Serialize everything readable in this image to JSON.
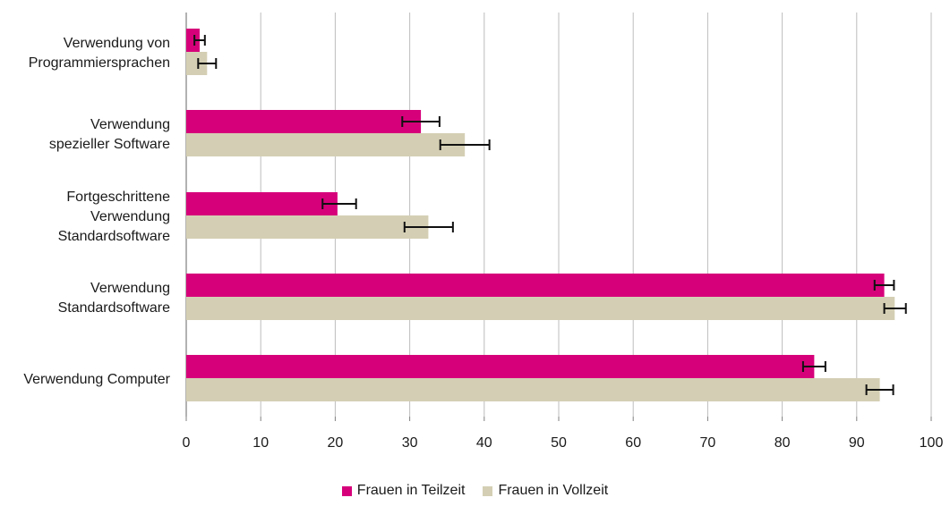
{
  "chart_data": {
    "type": "bar",
    "orientation": "horizontal",
    "categories": [
      [
        "Verwendung von",
        "Programmiersprachen"
      ],
      [
        "Verwendung",
        "spezieller Software"
      ],
      [
        "Fortgeschrittene",
        "Verwendung",
        "Standardsoftware"
      ],
      [
        "Verwendung",
        "Standardsoftware"
      ],
      [
        "Verwendung Computer"
      ]
    ],
    "series": [
      {
        "name": "Frauen in Teilzeit",
        "color": "#d6007a",
        "values": [
          1.8,
          31.5,
          20.3,
          93.7,
          84.3
        ],
        "error_low": [
          1.1,
          29.0,
          18.3,
          92.4,
          82.8
        ],
        "error_high": [
          2.5,
          34.0,
          22.8,
          95.0,
          85.8
        ]
      },
      {
        "name": "Frauen in Vollzeit",
        "color": "#d4cfb4",
        "values": [
          2.8,
          37.4,
          32.5,
          95.1,
          93.1
        ],
        "error_low": [
          1.6,
          34.1,
          29.3,
          93.7,
          91.3
        ],
        "error_high": [
          4.0,
          40.7,
          35.8,
          96.6,
          94.9
        ]
      }
    ],
    "xlim": [
      0,
      100
    ],
    "xticks": [
      0,
      10,
      20,
      30,
      40,
      50,
      60,
      70,
      80,
      90,
      100
    ],
    "grid": true,
    "legend_position": "bottom"
  }
}
